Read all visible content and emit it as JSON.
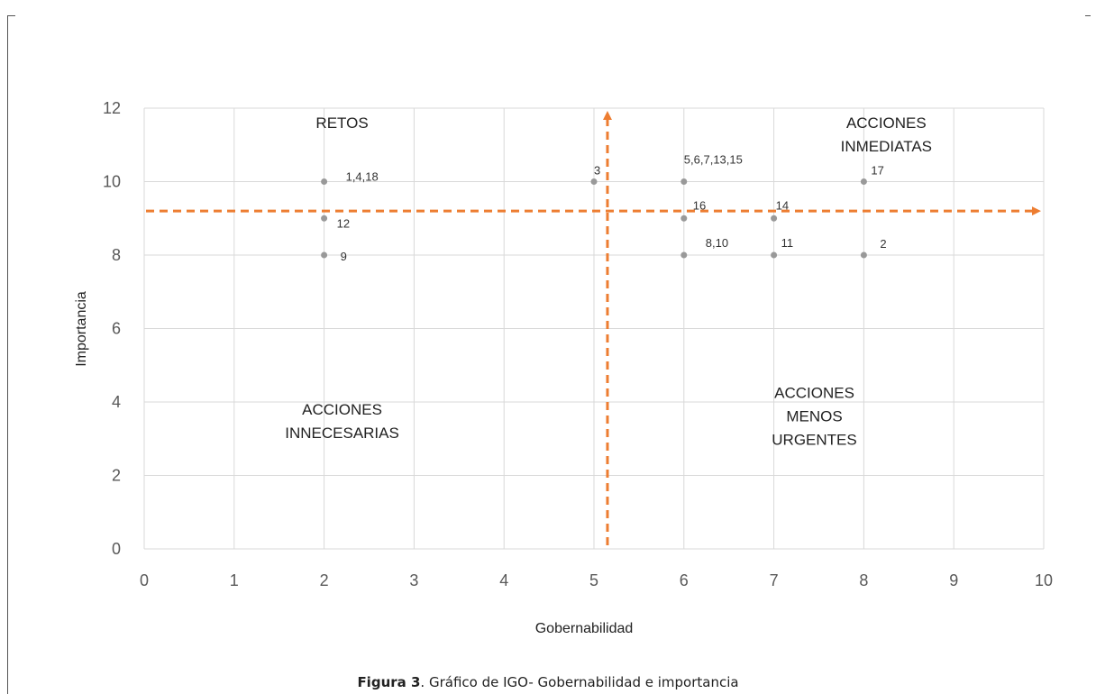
{
  "chart_data": {
    "type": "scatter",
    "xlabel": "Gobernabilidad",
    "ylabel": "Importancia",
    "xlim": [
      0,
      10
    ],
    "ylim": [
      0,
      12
    ],
    "x_ticks": [
      "0",
      "1",
      "2",
      "3",
      "4",
      "5",
      "6",
      "7",
      "8",
      "9",
      "10"
    ],
    "y_ticks": [
      "0",
      "2",
      "4",
      "6",
      "8",
      "10",
      "12"
    ],
    "grid": true,
    "points": [
      {
        "x": 2,
        "y": 10,
        "label": "1,4,18"
      },
      {
        "x": 2,
        "y": 9,
        "label": "12"
      },
      {
        "x": 2,
        "y": 8,
        "label": "9"
      },
      {
        "x": 5,
        "y": 10,
        "label": "3"
      },
      {
        "x": 6,
        "y": 10,
        "label": "5,6,7,13,15"
      },
      {
        "x": 6,
        "y": 9,
        "label": "16"
      },
      {
        "x": 6,
        "y": 8,
        "label": "8,10"
      },
      {
        "x": 7,
        "y": 9,
        "label": "14"
      },
      {
        "x": 7,
        "y": 8,
        "label": "11"
      },
      {
        "x": 8,
        "y": 10,
        "label": "17"
      },
      {
        "x": 8,
        "y": 8,
        "label": "2"
      }
    ],
    "reference_lines": {
      "vertical_x": 5.15,
      "horizontal_y": 9.2,
      "color": "#ED7D31"
    },
    "quadrant_labels": [
      {
        "lines": [
          "RETOS"
        ],
        "x": 2.2,
        "y": 11.8
      },
      {
        "lines": [
          "ACCIONES",
          "INMEDIATAS"
        ],
        "x": 8.25,
        "y": 11.8
      },
      {
        "lines": [
          "ACCIONES",
          "INNECESARIAS"
        ],
        "x": 2.2,
        "y": 4.0
      },
      {
        "lines": [
          "ACCIONES",
          "MENOS",
          "URGENTES"
        ],
        "x": 7.45,
        "y": 4.45
      }
    ],
    "point_color": "#999999"
  },
  "caption": {
    "figure_label": "Figura 3",
    "text": ". Gráfico de IGO- Gobernabilidad e importancia"
  }
}
